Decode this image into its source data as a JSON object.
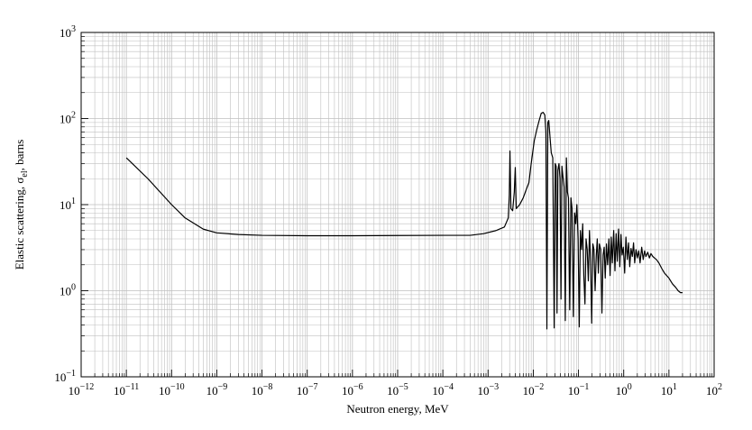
{
  "chart_data": {
    "type": "line",
    "xlabel": "Neutron energy, MeV",
    "ylabel_parts": [
      "Elastic scattering, σ",
      "el",
      ", barns"
    ],
    "x_scale": "log",
    "y_scale": "log",
    "xlim": [
      1e-12,
      100
    ],
    "ylim": [
      0.1,
      1000
    ],
    "x_tick_labels": [
      {
        "base": "10",
        "exp": "−12"
      },
      {
        "base": "10",
        "exp": "−11"
      },
      {
        "base": "10",
        "exp": "−10"
      },
      {
        "base": "10",
        "exp": "−9"
      },
      {
        "base": "10",
        "exp": "−8"
      },
      {
        "base": "10",
        "exp": "−7"
      },
      {
        "base": "10",
        "exp": "−6"
      },
      {
        "base": "10",
        "exp": "−5"
      },
      {
        "base": "10",
        "exp": "−4"
      },
      {
        "base": "10",
        "exp": "−3"
      },
      {
        "base": "10",
        "exp": "−2"
      },
      {
        "base": "10",
        "exp": "−1"
      },
      {
        "base": "10",
        "exp": "0"
      },
      {
        "base": "10",
        "exp": "1"
      },
      {
        "base": "10",
        "exp": "2"
      }
    ],
    "y_tick_labels": [
      {
        "base": "10",
        "exp": "−1"
      },
      {
        "base": "10",
        "exp": "0"
      },
      {
        "base": "10",
        "exp": "1"
      },
      {
        "base": "10",
        "exp": "2"
      },
      {
        "base": "10",
        "exp": "3"
      }
    ],
    "grid": true,
    "line_color": "#000000",
    "grid_color": "#bfbfbf",
    "series": [
      {
        "x": [
          1e-11,
          3e-11,
          1e-10,
          2e-10,
          5e-10,
          1e-09,
          3e-09,
          1e-08,
          1e-07,
          1e-06,
          1e-05,
          0.0001,
          0.0004,
          0.0008,
          0.0015,
          0.0023,
          0.0028,
          0.00295,
          0.00305,
          0.0032,
          0.0035,
          0.0038,
          0.004,
          0.0042,
          0.0046,
          0.005,
          0.0055,
          0.006,
          0.007,
          0.008,
          0.009,
          0.0105,
          0.012,
          0.0135,
          0.015,
          0.0165,
          0.018,
          0.019,
          0.02,
          0.021,
          0.022,
          0.0235,
          0.025,
          0.027,
          0.029,
          0.0305,
          0.032,
          0.0335,
          0.035,
          0.037,
          0.039,
          0.041,
          0.043,
          0.045,
          0.048,
          0.051,
          0.054,
          0.057,
          0.06,
          0.064,
          0.068,
          0.072,
          0.077,
          0.082,
          0.087,
          0.092,
          0.098,
          0.104,
          0.11,
          0.117,
          0.124,
          0.131,
          0.139,
          0.147,
          0.156,
          0.165,
          0.175,
          0.185,
          0.196,
          0.208,
          0.22,
          0.233,
          0.247,
          0.26,
          0.275,
          0.29,
          0.31,
          0.33,
          0.35,
          0.37,
          0.39,
          0.415,
          0.44,
          0.47,
          0.5,
          0.53,
          0.56,
          0.6,
          0.64,
          0.68,
          0.72,
          0.77,
          0.82,
          0.87,
          0.92,
          0.98,
          1.05,
          1.12,
          1.2,
          1.28,
          1.36,
          1.45,
          1.55,
          1.65,
          1.75,
          1.87,
          2.0,
          2.15,
          2.3,
          2.5,
          2.7,
          2.9,
          3.1,
          3.4,
          3.7,
          4.0,
          4.4,
          4.8,
          5.3,
          6.0,
          7.0,
          8.0,
          10.0,
          12.0,
          14.0,
          16.0,
          18.0,
          20.0
        ],
        "y": [
          35,
          20,
          10,
          7,
          5.2,
          4.7,
          4.5,
          4.4,
          4.35,
          4.35,
          4.38,
          4.4,
          4.4,
          4.6,
          5.0,
          5.5,
          7,
          13,
          42,
          9,
          8.5,
          14,
          27,
          9,
          9.5,
          10,
          11,
          12,
          15,
          18,
          30,
          55,
          75,
          95,
          115,
          118,
          110,
          70,
          0.36,
          90,
          95,
          60,
          40,
          35,
          0.37,
          30,
          28,
          0.55,
          25,
          30,
          20,
          0.8,
          28,
          22,
          16,
          0.45,
          35,
          14,
          12,
          0.6,
          12,
          9,
          0.5,
          8,
          6,
          10,
          4,
          0.38,
          5,
          3,
          6,
          1.5,
          0.7,
          4,
          3,
          1.3,
          5,
          2.2,
          0.42,
          3.5,
          3,
          1.0,
          2.5,
          4,
          1.6,
          3.5,
          3,
          0.55,
          2.6,
          3.2,
          1.4,
          3.5,
          2.0,
          4.0,
          1.5,
          4.2,
          2.1,
          5.0,
          1.7,
          4.6,
          2.2,
          5.2,
          1.9,
          4.5,
          2.6,
          3.2,
          1.6,
          4.2,
          2.3,
          3.6,
          1.9,
          3.1,
          2.5,
          3.6,
          2.1,
          3.0,
          2.4,
          2.9,
          2.1,
          3.2,
          2.3,
          2.9,
          2.5,
          2.8,
          2.4,
          2.7,
          2.5,
          2.4,
          2.3,
          2.1,
          1.8,
          1.6,
          1.4,
          1.2,
          1.1,
          1.0,
          0.95,
          0.95
        ]
      }
    ]
  }
}
